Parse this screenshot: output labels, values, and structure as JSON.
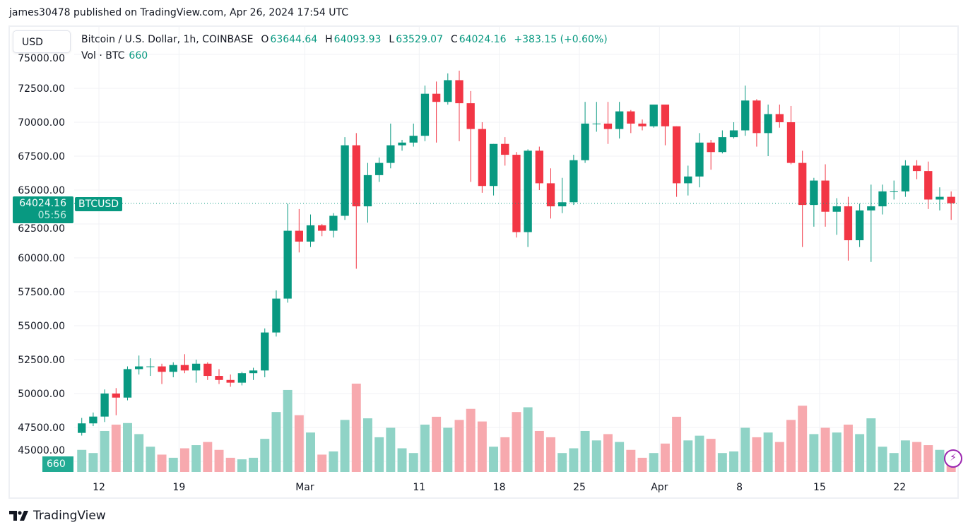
{
  "publish_note": "james30478 published on TradingView.com, Apr 26, 2024 17:54 UTC",
  "currency_button": "USD",
  "legend": {
    "title": "Bitcoin / U.S. Dollar, 1h, COINBASE",
    "o_label": "O",
    "o": "63644.64",
    "h_label": "H",
    "h": "64093.93",
    "l_label": "L",
    "l": "63529.07",
    "c_label": "C",
    "c": "64024.16",
    "change": "+383.15 (+0.60%)",
    "vol_label": "Vol · BTC",
    "vol": "660"
  },
  "price_label": {
    "price": "64024.16",
    "countdown": "05:56",
    "symbol": "BTCUSD"
  },
  "volume_label": "660",
  "brand": "TradingView",
  "colors": {
    "up": "#089981",
    "down": "#f23645",
    "up_volume": "#8fd3c6",
    "down_volume": "#f7a9ae",
    "accent": "#089981"
  },
  "icons": {
    "logo": "tradingview-logo",
    "bolt": "lightning-icon"
  },
  "chart_data": {
    "type": "candlestick",
    "y_axis": {
      "position": "left",
      "ylim": [
        44000,
        75000
      ],
      "ticks": [
        45000,
        47500,
        50000,
        52500,
        55000,
        57500,
        60000,
        62500,
        65000,
        67500,
        70000,
        72500,
        75000
      ]
    },
    "x_ticks": [
      {
        "label": "12",
        "date": "2024-02-12"
      },
      {
        "label": "19",
        "date": "2024-02-19"
      },
      {
        "label": "Mar",
        "date": "2024-03-01"
      },
      {
        "label": "11",
        "date": "2024-03-11"
      },
      {
        "label": "18",
        "date": "2024-03-18"
      },
      {
        "label": "25",
        "date": "2024-03-25"
      },
      {
        "label": "Apr",
        "date": "2024-04-01"
      },
      {
        "label": "8",
        "date": "2024-04-08"
      },
      {
        "label": "15",
        "date": "2024-04-15"
      },
      {
        "label": "22",
        "date": "2024-04-22"
      }
    ],
    "grid": true,
    "last_price": 64024.16,
    "start_date": "2024-02-10",
    "ohlc": [
      [
        47100,
        48200,
        46900,
        47800
      ],
      [
        47800,
        48600,
        47600,
        48300
      ],
      [
        48300,
        50300,
        47900,
        50000
      ],
      [
        50000,
        50400,
        48400,
        49700
      ],
      [
        49700,
        52000,
        49500,
        51800
      ],
      [
        51800,
        52800,
        51400,
        52000
      ],
      [
        52000,
        52600,
        51300,
        52000
      ],
      [
        52000,
        52200,
        50700,
        51600
      ],
      [
        51600,
        52300,
        51200,
        52100
      ],
      [
        52100,
        52900,
        51500,
        51700
      ],
      [
        51700,
        52500,
        50800,
        52200
      ],
      [
        52200,
        52300,
        51000,
        51300
      ],
      [
        51300,
        51800,
        50700,
        51000
      ],
      [
        51000,
        51400,
        50500,
        50800
      ],
      [
        50800,
        51600,
        50600,
        51500
      ],
      [
        51500,
        51900,
        51000,
        51700
      ],
      [
        51700,
        54800,
        51200,
        54500
      ],
      [
        54500,
        57600,
        54200,
        57000
      ],
      [
        57000,
        64000,
        56700,
        62000
      ],
      [
        62000,
        63600,
        60400,
        61200
      ],
      [
        61200,
        63200,
        60800,
        62400
      ],
      [
        62400,
        62500,
        61600,
        62000
      ],
      [
        62000,
        63300,
        61500,
        63100
      ],
      [
        63100,
        68900,
        62800,
        68300
      ],
      [
        68300,
        69200,
        59200,
        63800
      ],
      [
        63800,
        67000,
        62600,
        66100
      ],
      [
        66100,
        67400,
        65600,
        67000
      ],
      [
        67000,
        69900,
        66600,
        68300
      ],
      [
        68300,
        68700,
        67900,
        68500
      ],
      [
        68500,
        69900,
        68200,
        69000
      ],
      [
        69000,
        72700,
        68600,
        72100
      ],
      [
        72100,
        73000,
        68500,
        71500
      ],
      [
        71500,
        73600,
        71300,
        73100
      ],
      [
        73100,
        73800,
        68600,
        71400
      ],
      [
        71400,
        72300,
        65600,
        69500
      ],
      [
        69500,
        70000,
        64800,
        65300
      ],
      [
        65300,
        68400,
        64600,
        68400
      ],
      [
        68400,
        68900,
        66800,
        67600
      ],
      [
        67600,
        67800,
        61500,
        61900
      ],
      [
        61900,
        68000,
        60800,
        67900
      ],
      [
        67900,
        68200,
        65000,
        65500
      ],
      [
        65500,
        66600,
        62900,
        63800
      ],
      [
        63800,
        65900,
        63300,
        64100
      ],
      [
        64100,
        67600,
        63900,
        67200
      ],
      [
        67200,
        71500,
        67000,
        69900
      ],
      [
        69900,
        71500,
        69300,
        69900
      ],
      [
        69900,
        71500,
        68400,
        69500
      ],
      [
        69500,
        71500,
        68800,
        70800
      ],
      [
        70800,
        70900,
        69200,
        69900
      ],
      [
        69900,
        70200,
        69400,
        69700
      ],
      [
        69700,
        71300,
        69600,
        71300
      ],
      [
        71300,
        71300,
        68300,
        69700
      ],
      [
        69700,
        69700,
        64500,
        65500
      ],
      [
        65500,
        66800,
        64600,
        66000
      ],
      [
        66000,
        69200,
        65200,
        68500
      ],
      [
        68500,
        68700,
        66500,
        67800
      ],
      [
        67800,
        69400,
        67700,
        68900
      ],
      [
        68900,
        70000,
        68800,
        69400
      ],
      [
        69400,
        72700,
        69000,
        71600
      ],
      [
        71600,
        71700,
        68200,
        69200
      ],
      [
        69200,
        71300,
        67500,
        70600
      ],
      [
        70600,
        71300,
        69600,
        70000
      ],
      [
        70000,
        71200,
        66900,
        67000
      ],
      [
        67000,
        67900,
        60800,
        63900
      ],
      [
        63900,
        65900,
        62300,
        65700
      ],
      [
        65700,
        66900,
        62300,
        63400
      ],
      [
        63400,
        64400,
        61700,
        63800
      ],
      [
        63800,
        64500,
        59800,
        61300
      ],
      [
        61300,
        64000,
        60800,
        63500
      ],
      [
        63500,
        65400,
        59700,
        63800
      ],
      [
        63800,
        65400,
        63200,
        64900
      ],
      [
        64900,
        65700,
        64300,
        64900
      ],
      [
        64900,
        67200,
        64500,
        66800
      ],
      [
        66800,
        67200,
        65800,
        66400
      ],
      [
        66400,
        67100,
        63600,
        64300
      ],
      [
        64300,
        65200,
        63500,
        64500
      ],
      [
        64500,
        64900,
        62800,
        64024.16
      ]
    ],
    "volume_btc": [
      14000,
      12000,
      26000,
      30000,
      31000,
      24000,
      16000,
      11000,
      9000,
      15000,
      17000,
      19000,
      14000,
      9000,
      8000,
      9000,
      21000,
      38000,
      52000,
      36000,
      25000,
      11000,
      13000,
      33000,
      56000,
      34000,
      22000,
      28000,
      15000,
      12000,
      30000,
      35000,
      28000,
      33000,
      40000,
      32000,
      16000,
      22000,
      38000,
      41000,
      26000,
      22000,
      12000,
      15000,
      26000,
      20000,
      24000,
      19000,
      14000,
      9000,
      12000,
      18000,
      35000,
      20000,
      23000,
      21000,
      12000,
      13000,
      28000,
      22000,
      25000,
      19000,
      33000,
      42000,
      24000,
      28000,
      25000,
      30000,
      24000,
      34000,
      16000,
      12000,
      20000,
      19000,
      17000,
      14000,
      13000
    ]
  }
}
